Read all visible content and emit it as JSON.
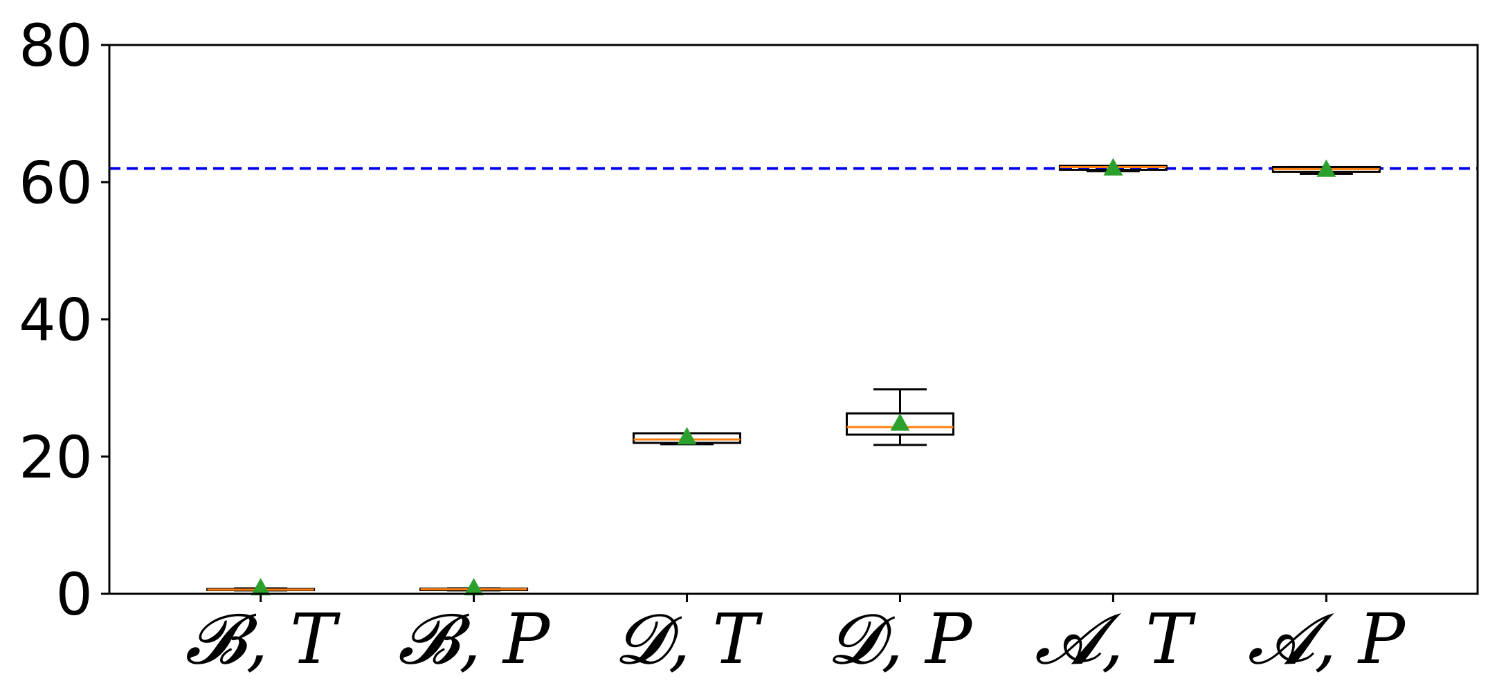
{
  "chart_data": {
    "type": "box",
    "categories": [
      "𝓑, T",
      "𝓑, P",
      "𝓓, T",
      "𝓓, P",
      "𝓐, T",
      "𝓐, P"
    ],
    "boxes": [
      {
        "whisker_low": 0.5,
        "q1": 0.55,
        "median": 0.6,
        "q3": 0.7,
        "whisker_high": 0.8,
        "mean": 0.9
      },
      {
        "whisker_low": 0.5,
        "q1": 0.55,
        "median": 0.65,
        "q3": 0.75,
        "whisker_high": 0.8,
        "mean": 0.9
      },
      {
        "whisker_low": 21.8,
        "q1": 22.0,
        "median": 22.5,
        "q3": 23.4,
        "whisker_high": 23.4,
        "mean": 22.9
      },
      {
        "whisker_low": 21.7,
        "q1": 23.2,
        "median": 24.3,
        "q3": 26.3,
        "whisker_high": 29.8,
        "mean": 24.9
      },
      {
        "whisker_low": 61.6,
        "q1": 61.8,
        "median": 62.2,
        "q3": 62.4,
        "whisker_high": 62.4,
        "mean": 62.1
      },
      {
        "whisker_low": 61.2,
        "q1": 61.5,
        "median": 61.9,
        "q3": 62.2,
        "whisker_high": 62.2,
        "mean": 61.9
      }
    ],
    "reference_line": {
      "y": 62.0,
      "style": "dashed",
      "color": "#0000ee"
    },
    "ylim": [
      0,
      80
    ],
    "yticks": [
      0,
      20,
      40,
      60,
      80
    ],
    "title": "",
    "xlabel": "",
    "ylabel": "",
    "grid": false,
    "colors": {
      "median": "#ff7f0e",
      "mean_marker": "#2ca02c",
      "box": "#000000",
      "reference": "#0000ee"
    }
  }
}
